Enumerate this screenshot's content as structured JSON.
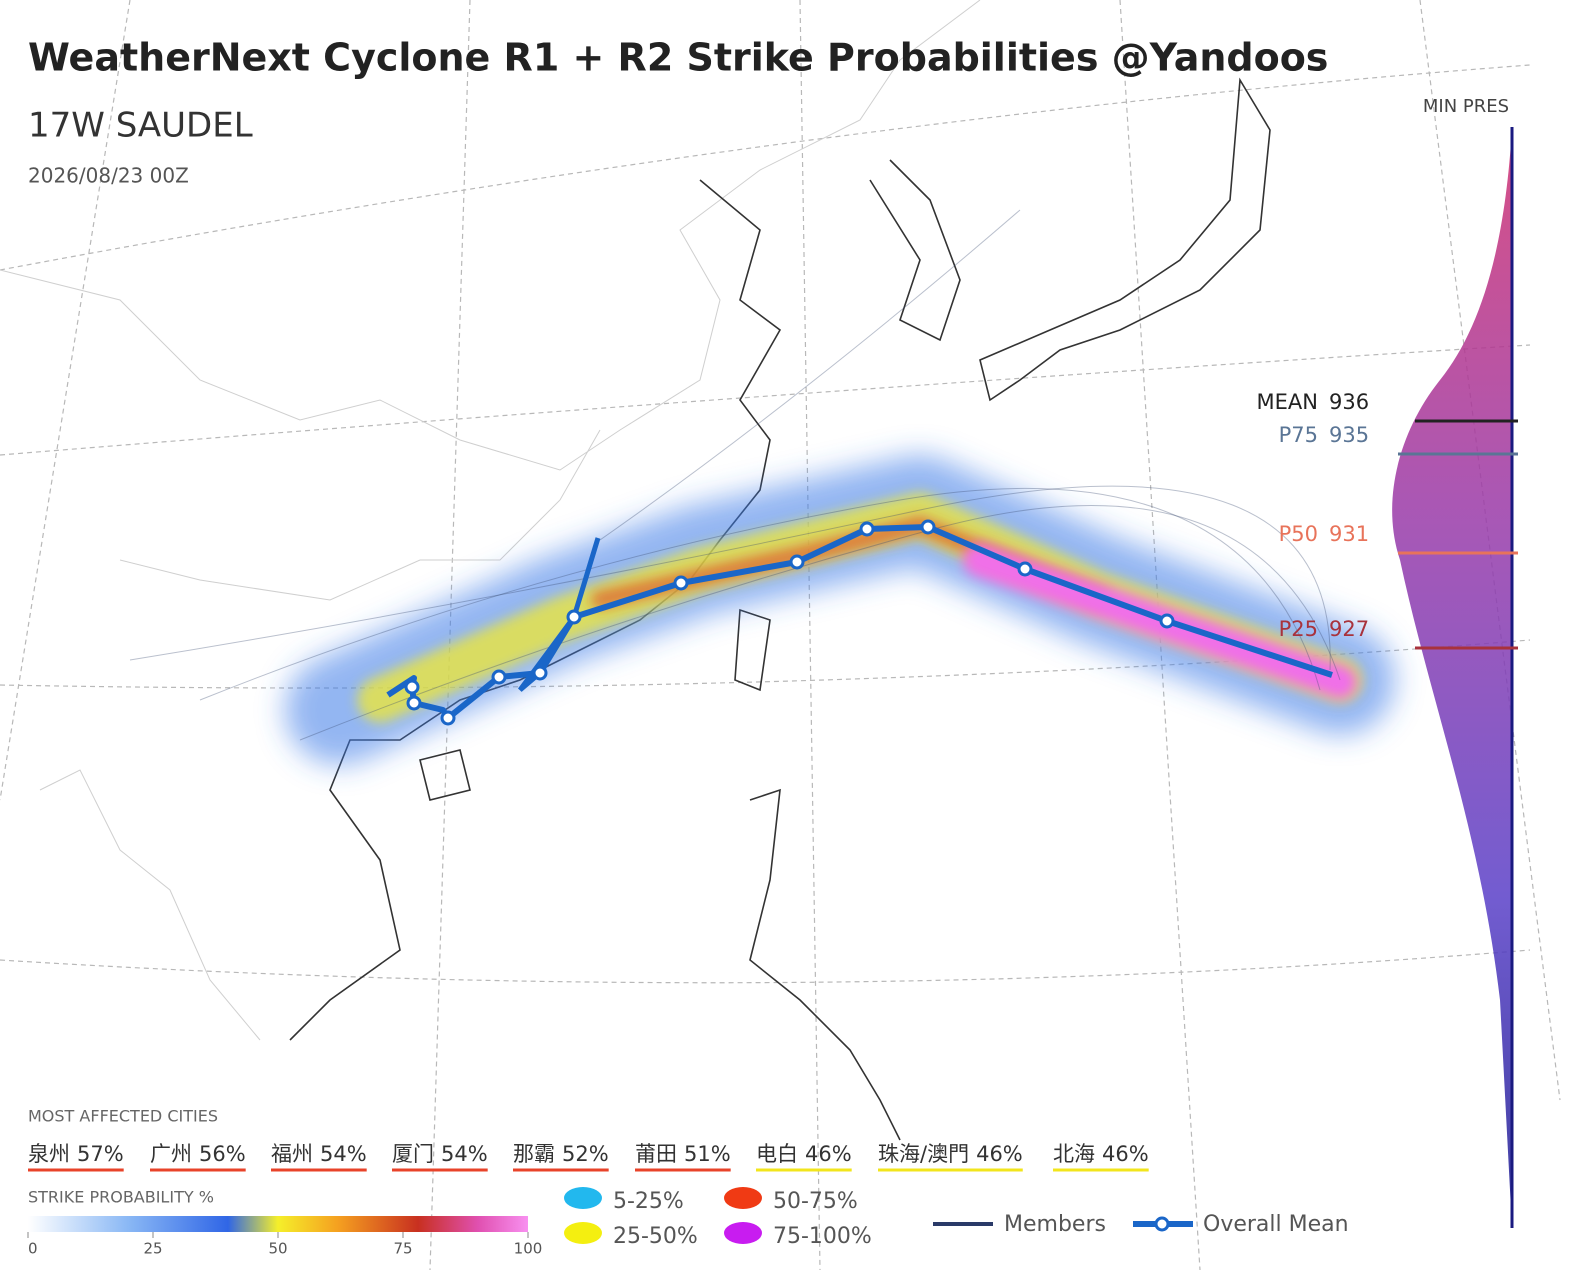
{
  "header": {
    "title": "WeatherNext Cyclone R1 + R2 Strike Probabilities @Yandoos",
    "storm": "17W SAUDEL",
    "init_time": "2026/08/23 00Z"
  },
  "min_pres": {
    "label": "MIN PRES",
    "stats": [
      {
        "name": "MEAN",
        "value": "936",
        "color": "#222222"
      },
      {
        "name": "P75",
        "value": "935",
        "color": "#5a7595"
      },
      {
        "name": "P50",
        "value": "931",
        "color": "#e8735a"
      },
      {
        "name": "P25",
        "value": "927",
        "color": "#a8323c"
      }
    ]
  },
  "cities": {
    "label": "MOST AFFECTED CITIES",
    "items": [
      {
        "name": "泉州",
        "prob": "57%",
        "color": "#e8432a"
      },
      {
        "name": "广州",
        "prob": "56%",
        "color": "#e8432a"
      },
      {
        "name": "福州",
        "prob": "54%",
        "color": "#e8432a"
      },
      {
        "name": "厦门",
        "prob": "54%",
        "color": "#e8432a"
      },
      {
        "name": "那霸",
        "prob": "52%",
        "color": "#e8432a"
      },
      {
        "name": "莆田",
        "prob": "51%",
        "color": "#e8432a"
      },
      {
        "name": "电白",
        "prob": "46%",
        "color": "#f2e51c"
      },
      {
        "name": "珠海/澳門",
        "prob": "46%",
        "color": "#f2e51c"
      },
      {
        "name": "北海",
        "prob": "46%",
        "color": "#f2e51c"
      }
    ]
  },
  "strike_probability": {
    "label": "STRIKE PROBABILITY %",
    "range": [
      0,
      100
    ],
    "ticks": [
      0,
      25,
      50,
      75,
      100
    ],
    "classes": [
      {
        "label": "5-25%",
        "color": "#22b8ee"
      },
      {
        "label": "25-50%",
        "color": "#f4ef10"
      },
      {
        "label": "50-75%",
        "color": "#f03a14"
      },
      {
        "label": "75-100%",
        "color": "#c81cf0"
      }
    ]
  },
  "lines_legend": {
    "members": "Members",
    "mean": "Overall Mean"
  }
}
